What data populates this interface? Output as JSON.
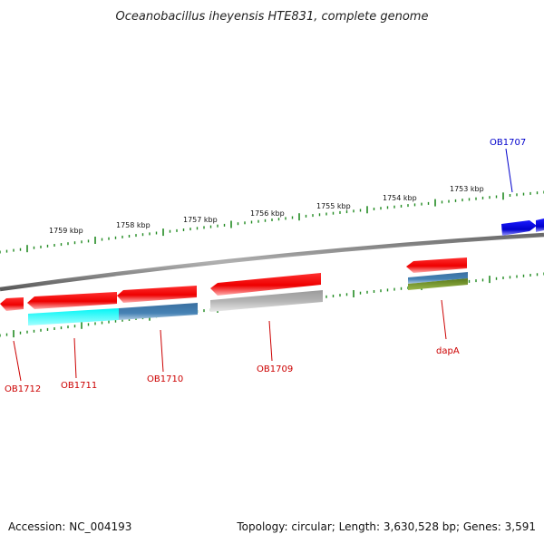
{
  "header": {
    "title": "Oceanobacillus iheyensis HTE831, complete genome"
  },
  "footer": {
    "accession": "Accession: NC_004193",
    "topology": "Topology: circular; Length: 3,630,528 bp; Genes: 3,591"
  },
  "colors": {
    "backbone": "#808080",
    "ticks": "#228b22",
    "forward_gene": "#0000cc",
    "reverse_gene": "#ee0000",
    "gene_label_reverse": "#cc0000",
    "gene_label_forward": "#0000cc",
    "track_cyan": "#00e6e6",
    "track_steelblue": "#4682b4",
    "track_gray": "#b4b4b4",
    "track_olive": "#6b8e23"
  },
  "scale": {
    "ruler_labels": [
      "1759 kbp",
      "1758 kbp",
      "1757 kbp",
      "1756 kbp",
      "1755 kbp",
      "1754 kbp",
      "1753 kbp"
    ]
  },
  "genes": [
    {
      "name": "OB1712",
      "strand": "reverse"
    },
    {
      "name": "OB1711",
      "strand": "reverse"
    },
    {
      "name": "OB1710",
      "strand": "reverse"
    },
    {
      "name": "OB1709",
      "strand": "reverse"
    },
    {
      "name": "dapA",
      "strand": "reverse"
    },
    {
      "name": "OB1707",
      "strand": "forward"
    }
  ]
}
